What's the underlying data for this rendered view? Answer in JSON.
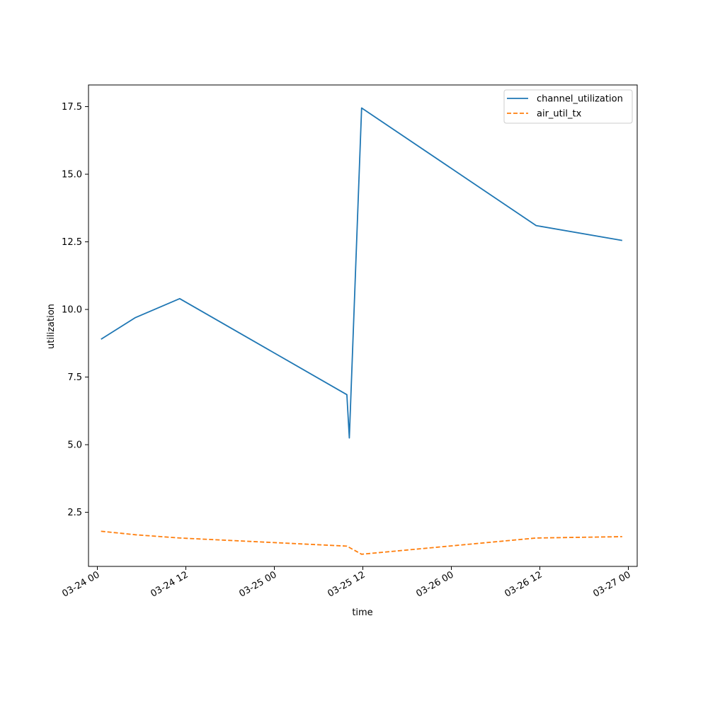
{
  "chart_data": {
    "type": "line",
    "title": "",
    "xlabel": "time",
    "ylabel": "utilization",
    "x_tick_labels": [
      "03-24 00",
      "03-24 12",
      "03-25 00",
      "03-25 12",
      "03-26 00",
      "03-26 12",
      "03-27 00"
    ],
    "y_tick_labels": [
      "2.5",
      "5.0",
      "7.5",
      "10.0",
      "12.5",
      "15.0",
      "17.5"
    ],
    "x_ticks": [
      "2024-03-24 00:00",
      "2024-03-24 12:00",
      "2024-03-25 00:00",
      "2024-03-25 12:00",
      "2024-03-26 00:00",
      "2024-03-26 12:00",
      "2024-03-27 00:00"
    ],
    "y_ticks": [
      2.5,
      5.0,
      7.5,
      10.0,
      12.5,
      15.0,
      17.5
    ],
    "xlim": [
      "2024-03-23 22:48",
      "2024-03-27 01:12"
    ],
    "ylim": [
      0.5,
      18.3
    ],
    "grid": false,
    "legend_position": "top-right",
    "series": [
      {
        "name": "channel_utilization",
        "color": "#1f77b4",
        "style": "solid",
        "x": [
          "2024-03-24 00:30",
          "2024-03-24 05:10",
          "2024-03-24 11:10",
          "2024-03-25 09:50",
          "2024-03-25 10:10",
          "2024-03-25 11:50",
          "2024-03-26 11:30",
          "2024-03-26 23:10"
        ],
        "y": [
          8.9,
          9.7,
          10.4,
          6.85,
          5.25,
          17.45,
          13.1,
          12.55
        ]
      },
      {
        "name": "air_util_tx",
        "color": "#ff7f0e",
        "style": "dashed",
        "x": [
          "2024-03-24 00:30",
          "2024-03-24 05:10",
          "2024-03-24 11:10",
          "2024-03-25 09:50",
          "2024-03-25 10:10",
          "2024-03-25 11:50",
          "2024-03-26 11:30",
          "2024-03-26 23:10"
        ],
        "y": [
          1.8,
          1.67,
          1.55,
          1.25,
          1.2,
          0.95,
          1.55,
          1.6
        ]
      }
    ]
  }
}
